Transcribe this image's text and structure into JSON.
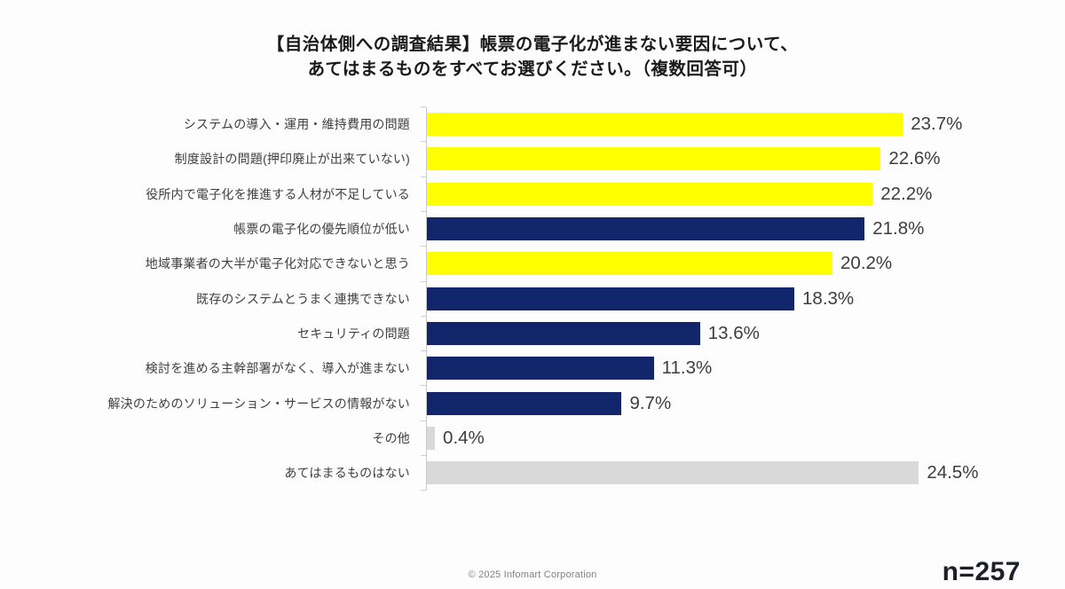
{
  "title": {
    "line1": "【自治体側への調査結果】帳票の電子化が進まない要因について、",
    "line2": "あてはまるものをすべてお選びください。（複数回答可）"
  },
  "chart_data": {
    "type": "bar",
    "orientation": "horizontal",
    "title": "【自治体側への調査結果】帳票の電子化が進まない要因について、あてはまるものをすべてお選びください。（複数回答可）",
    "categories": [
      "システムの導入・運用・維持費用の問題",
      "制度設計の問題(押印廃止が出来ていない)",
      "役所内で電子化を推進する人材が不足している",
      "帳票の電子化の優先順位が低い",
      "地域事業者の大半が電子化対応できないと思う",
      "既存のシステムとうまく連携できない",
      "セキュリティの問題",
      "検討を進める主幹部署がなく、導入が進まない",
      "解決のためのソリューション・サービスの情報がない",
      "その他",
      "あてはまるものはない"
    ],
    "values": [
      23.7,
      22.6,
      22.2,
      21.8,
      20.2,
      18.3,
      13.6,
      11.3,
      9.7,
      0.4,
      24.5
    ],
    "value_labels": [
      "23.7%",
      "22.6%",
      "22.2%",
      "21.8%",
      "20.2%",
      "18.3%",
      "13.6%",
      "11.3%",
      "9.7%",
      "0.4%",
      "24.5%"
    ],
    "bar_colors": [
      "#FFFF00",
      "#FFFF00",
      "#FFFF00",
      "#11266B",
      "#FFFF00",
      "#11266B",
      "#11266B",
      "#11266B",
      "#11266B",
      "#D9D9D9",
      "#D9D9D9"
    ],
    "palette": {
      "highlight_yellow": "#FFFF00",
      "navy": "#11266B",
      "neutral_gray": "#D9D9D9"
    },
    "xlim": [
      0,
      25.9
    ],
    "grid": false,
    "legend": "none",
    "xlabel": "",
    "ylabel": ""
  },
  "footer": {
    "copyright": "© 2025 Infomart Corporation",
    "sample_size": "n=257"
  }
}
